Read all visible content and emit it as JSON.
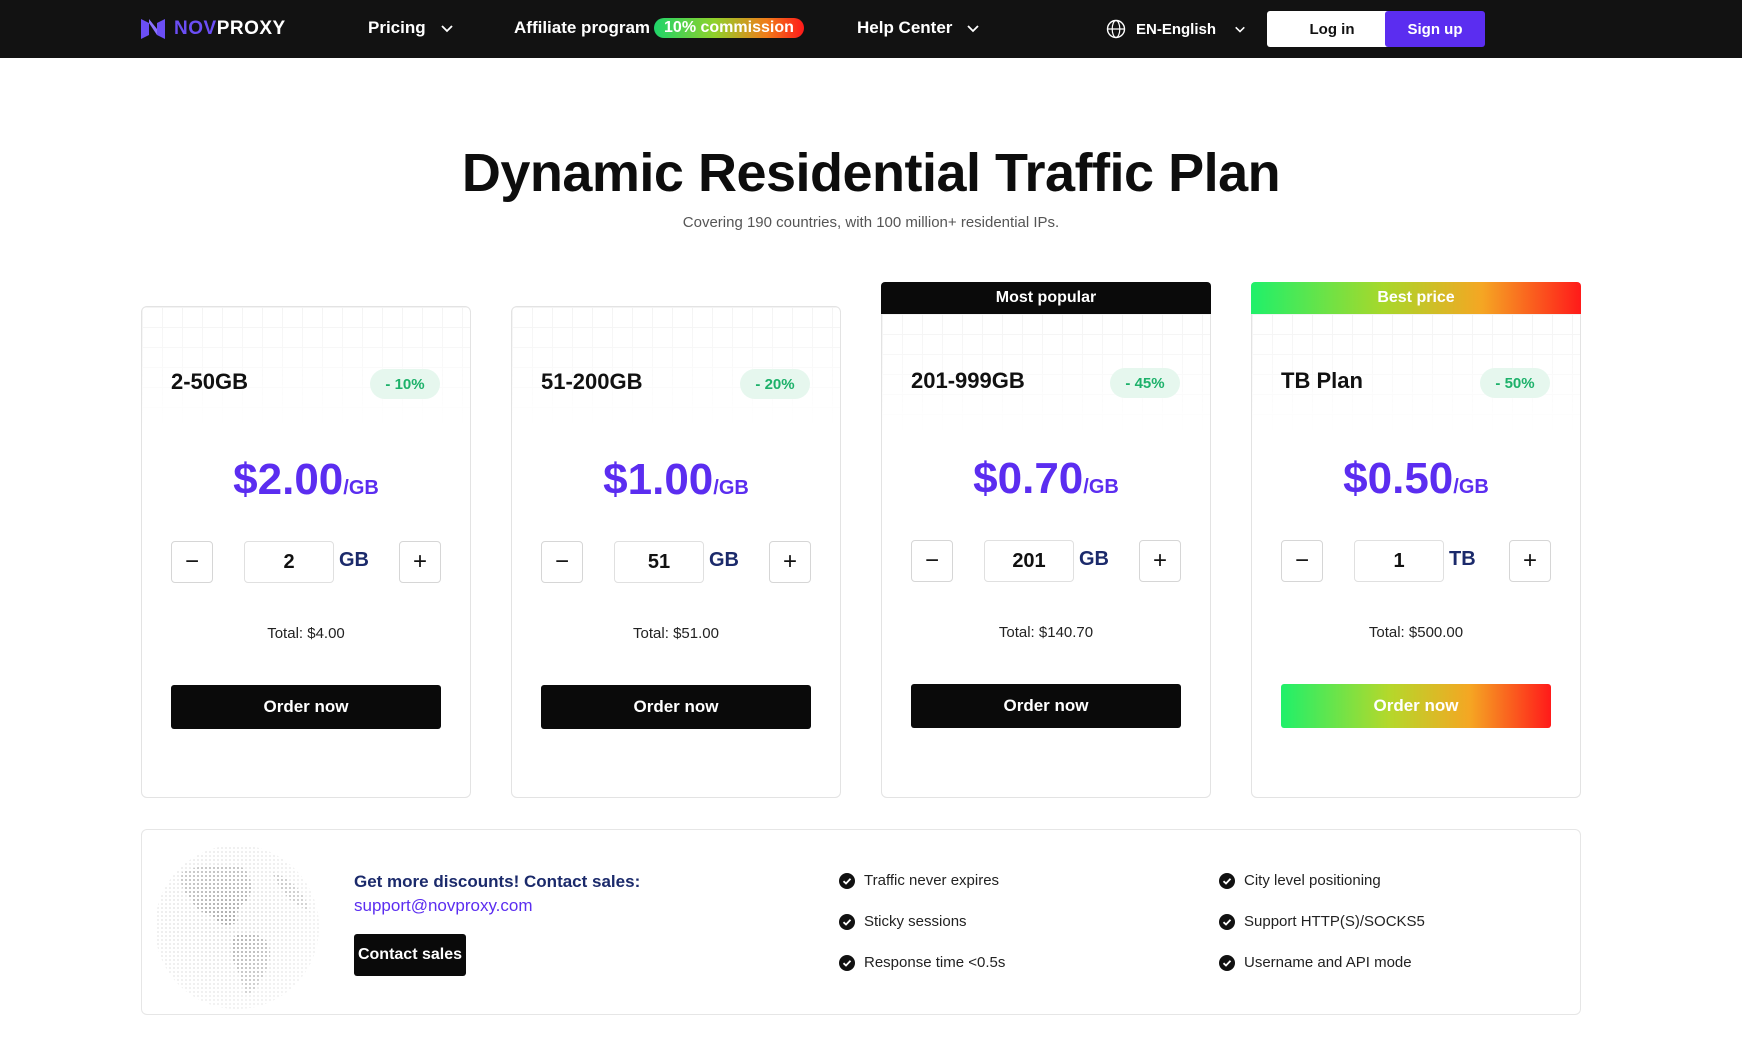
{
  "nav": {
    "logo_part1": "NOV",
    "logo_part2": "PROXY",
    "pricing_label": "Pricing",
    "affiliate_label": "Affiliate program",
    "affiliate_badge": "10% commission",
    "help_label": "Help Center",
    "language_label": "EN-English",
    "login_label": "Log in",
    "signup_label": "Sign up"
  },
  "hero": {
    "title": "Dynamic Residential Traffic Plan",
    "subtitle": "Covering 190 countries, with 100 million+ residential IPs."
  },
  "plans": [
    {
      "tag": "",
      "name": "2-50GB",
      "discount": "- 10%",
      "price": "$2.00",
      "unit": "/GB",
      "qty": "2",
      "qty_unit": "GB",
      "total": "Total: $4.00",
      "order_label": "Order now"
    },
    {
      "tag": "",
      "name": "51-200GB",
      "discount": "- 20%",
      "price": "$1.00",
      "unit": "/GB",
      "qty": "51",
      "qty_unit": "GB",
      "total": "Total: $51.00",
      "order_label": "Order now"
    },
    {
      "tag": "Most popular",
      "name": "201-999GB",
      "discount": "- 45%",
      "price": "$0.70",
      "unit": "/GB",
      "qty": "201",
      "qty_unit": "GB",
      "total": "Total: $140.70",
      "order_label": "Order now"
    },
    {
      "tag": "Best price",
      "name": "TB Plan",
      "discount": "- 50%",
      "price": "$0.50",
      "unit": "/GB",
      "qty": "1",
      "qty_unit": "TB",
      "total": "Total: $500.00",
      "order_label": "Order now"
    }
  ],
  "contact": {
    "title": "Get more discounts! Contact sales:",
    "email": "support@novproxy.com",
    "button_label": "Contact sales"
  },
  "features": [
    "Traffic never expires",
    "Sticky sessions",
    "Response time <0.5s",
    "City level positioning",
    "Support HTTP(S)/SOCKS5",
    "Username and API mode"
  ],
  "colors": {
    "accent": "#5b2df0",
    "nav_bg": "#121212",
    "discount_text": "#1db16a",
    "discount_bg": "#e6f7ee"
  }
}
